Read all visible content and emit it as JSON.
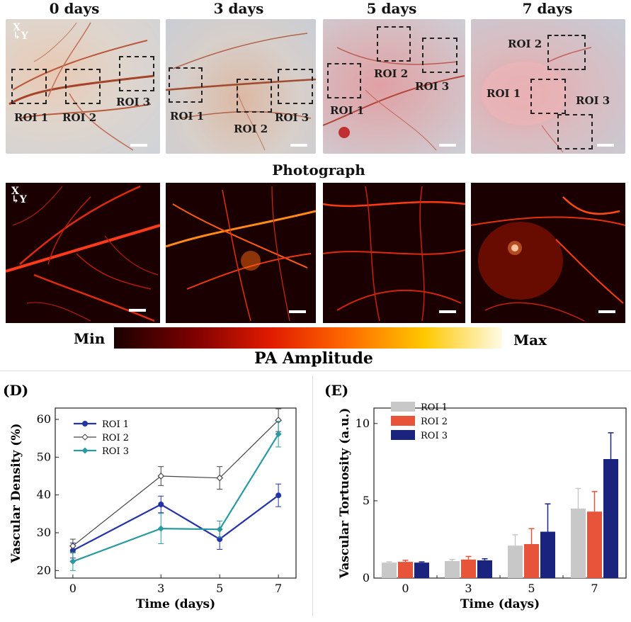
{
  "days": [
    "0 days",
    "3 days",
    "5 days",
    "7 days"
  ],
  "photo_rois": [
    [
      {
        "label": "ROI 1"
      },
      {
        "label": "ROI 2"
      },
      {
        "label": "ROI 3"
      }
    ],
    [
      {
        "label": "ROI 1"
      },
      {
        "label": "ROI 2"
      },
      {
        "label": "ROI 3"
      }
    ],
    [
      {
        "label": "ROI 1"
      },
      {
        "label": "ROI 2"
      },
      {
        "label": "ROI 3"
      }
    ],
    [
      {
        "label": "ROI 2"
      },
      {
        "label": "ROI 1"
      },
      {
        "label": "ROI 3"
      }
    ]
  ],
  "axes_indicator": {
    "x": "X",
    "y": "Y"
  },
  "photograph_label": "Photograph",
  "colorbar": {
    "min_label": "Min",
    "max_label": "Max",
    "title": "PA Amplitude",
    "colors": [
      "#1a0000",
      "#7a0000",
      "#e01a00",
      "#ff6a00",
      "#ffc800",
      "#fffbe6"
    ]
  },
  "chart_data": [
    {
      "panel_label": "(D)",
      "type": "line",
      "xlabel": "Time (days)",
      "ylabel": "Vascular Density (%)",
      "x": [
        0,
        3,
        5,
        7
      ],
      "x_ticks": [
        "0",
        "3",
        "5",
        "7"
      ],
      "y_ticks": [
        "20",
        "30",
        "40",
        "50",
        "60"
      ],
      "ylim": [
        18,
        63
      ],
      "legend_position": "top-left",
      "series": [
        {
          "name": "ROI 1",
          "values": [
            25.3,
            37.5,
            28.3,
            39.9
          ],
          "errors": [
            2.0,
            2.2,
            2.7,
            3.0
          ],
          "color": "#2433a8",
          "marker": "filled-circle"
        },
        {
          "name": "ROI 2",
          "values": [
            26.5,
            45.0,
            44.5,
            59.8
          ],
          "errors": [
            1.8,
            2.5,
            3.0,
            3.0
          ],
          "color": "#444444",
          "marker": "open-diamond"
        },
        {
          "name": "ROI 3",
          "values": [
            22.4,
            31.1,
            30.9,
            56.1
          ],
          "errors": [
            2.4,
            4.0,
            2.2,
            3.4
          ],
          "color": "#2a9aa0",
          "marker": "filled-diamond"
        }
      ]
    },
    {
      "panel_label": "(E)",
      "type": "bar",
      "xlabel": "Time (days)",
      "ylabel": "Vascular Tortuosity (a.u.)",
      "categories": [
        "0",
        "3",
        "5",
        "7"
      ],
      "y_ticks": [
        "0",
        "5",
        "10"
      ],
      "ylim": [
        0,
        11
      ],
      "legend_position": "top-left",
      "series": [
        {
          "name": "ROI 1",
          "values": [
            1.0,
            1.1,
            2.1,
            4.5
          ],
          "errors": [
            0.05,
            0.1,
            0.7,
            1.3
          ],
          "color": "#c8c8c8"
        },
        {
          "name": "ROI 2",
          "values": [
            1.05,
            1.2,
            2.2,
            4.3
          ],
          "errors": [
            0.1,
            0.2,
            1.0,
            1.3
          ],
          "color": "#e8543a"
        },
        {
          "name": "ROI 3",
          "values": [
            1.0,
            1.15,
            3.0,
            7.7
          ],
          "errors": [
            0.05,
            0.1,
            1.8,
            1.7
          ],
          "color": "#1a237e"
        }
      ]
    }
  ]
}
